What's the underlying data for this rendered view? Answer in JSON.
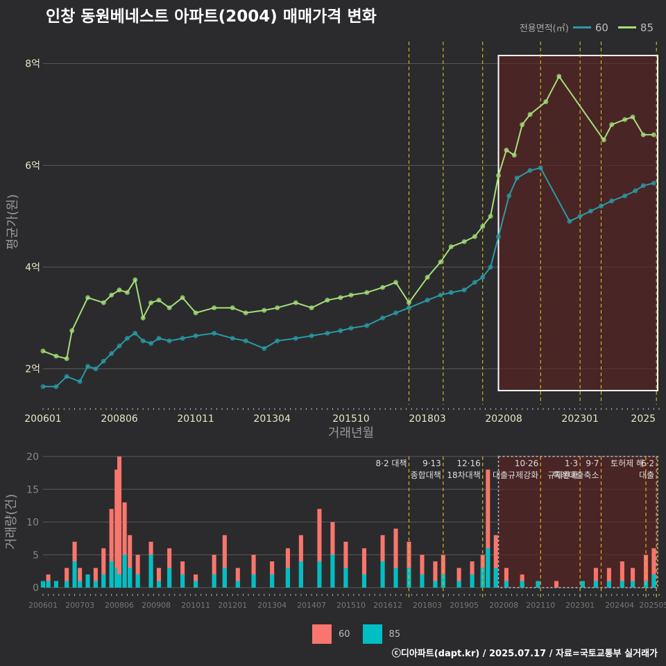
{
  "title": "인창 동원베네스트 아파트(2004) 매매가격 변화",
  "legend": {
    "title": "전용면적(㎡)",
    "items": [
      {
        "name": "60",
        "color": "#2a9ba6"
      },
      {
        "name": "85",
        "color": "#a6e07a"
      }
    ]
  },
  "footer": "ⓒ디아파트(dapt.kr) / 2025.07.17 / 자료=국토교통부 실거래가",
  "bottom_legend": [
    {
      "name": "60",
      "color": "#f8766d"
    },
    {
      "name": "85",
      "color": "#00bfc4"
    }
  ],
  "chart_data": [
    {
      "type": "line",
      "ylabel": "평균가(원)",
      "xlabel": "거래년월",
      "ylim": [
        1.3,
        8.5
      ],
      "y_ticks": [
        {
          "value": 2,
          "label": "2억"
        },
        {
          "value": 4,
          "label": "4억"
        },
        {
          "value": 6,
          "label": "6억"
        },
        {
          "value": 8,
          "label": "8억"
        }
      ],
      "x_range": [
        "2006-01",
        "2025-07"
      ],
      "x_ticks": [
        "200601",
        "200806",
        "201011",
        "201304",
        "201510",
        "201803",
        "202008",
        "202301",
        "2025"
      ],
      "policy_dates": [
        "2017-08",
        "2018-09",
        "2019-12",
        "2021-10",
        "2023-01",
        "2023-09",
        "2025-06"
      ],
      "highlight_range": [
        "2020-06",
        "2025-07"
      ],
      "series": [
        {
          "name": "60",
          "color": "#2a9ba6",
          "points": [
            [
              "2006-01",
              1.65
            ],
            [
              "2006-06",
              1.65
            ],
            [
              "2006-10",
              1.85
            ],
            [
              "2007-03",
              1.75
            ],
            [
              "2007-06",
              2.05
            ],
            [
              "2007-09",
              2.0
            ],
            [
              "2007-12",
              2.15
            ],
            [
              "2008-03",
              2.3
            ],
            [
              "2008-06",
              2.45
            ],
            [
              "2008-09",
              2.6
            ],
            [
              "2008-12",
              2.7
            ],
            [
              "2009-03",
              2.55
            ],
            [
              "2009-06",
              2.5
            ],
            [
              "2009-09",
              2.6
            ],
            [
              "2010-01",
              2.55
            ],
            [
              "2010-06",
              2.6
            ],
            [
              "2010-11",
              2.65
            ],
            [
              "2011-06",
              2.7
            ],
            [
              "2012-01",
              2.6
            ],
            [
              "2012-06",
              2.55
            ],
            [
              "2013-01",
              2.4
            ],
            [
              "2013-06",
              2.55
            ],
            [
              "2014-01",
              2.6
            ],
            [
              "2014-07",
              2.65
            ],
            [
              "2015-01",
              2.7
            ],
            [
              "2015-06",
              2.75
            ],
            [
              "2015-10",
              2.8
            ],
            [
              "2016-04",
              2.85
            ],
            [
              "2016-10",
              3.0
            ],
            [
              "2017-03",
              3.1
            ],
            [
              "2017-08",
              3.2
            ],
            [
              "2018-03",
              3.35
            ],
            [
              "2018-08",
              3.45
            ],
            [
              "2018-12",
              3.5
            ],
            [
              "2019-05",
              3.55
            ],
            [
              "2019-09",
              3.7
            ],
            [
              "2019-12",
              3.8
            ],
            [
              "2020-03",
              4.0
            ],
            [
              "2020-06",
              4.6
            ],
            [
              "2020-10",
              5.4
            ],
            [
              "2021-01",
              5.75
            ],
            [
              "2021-06",
              5.9
            ],
            [
              "2021-10",
              5.95
            ],
            [
              "2022-09",
              4.9
            ],
            [
              "2023-01",
              5.0
            ],
            [
              "2023-05",
              5.1
            ],
            [
              "2023-09",
              5.2
            ],
            [
              "2024-01",
              5.3
            ],
            [
              "2024-06",
              5.4
            ],
            [
              "2024-10",
              5.5
            ],
            [
              "2025-01",
              5.6
            ],
            [
              "2025-05",
              5.65
            ]
          ]
        },
        {
          "name": "85",
          "color": "#a6e07a",
          "points": [
            [
              "2006-01",
              2.35
            ],
            [
              "2006-06",
              2.25
            ],
            [
              "2006-10",
              2.2
            ],
            [
              "2006-12",
              2.75
            ],
            [
              "2007-06",
              3.4
            ],
            [
              "2007-12",
              3.3
            ],
            [
              "2008-03",
              3.45
            ],
            [
              "2008-06",
              3.55
            ],
            [
              "2008-09",
              3.5
            ],
            [
              "2008-12",
              3.75
            ],
            [
              "2009-03",
              3.0
            ],
            [
              "2009-06",
              3.3
            ],
            [
              "2009-09",
              3.35
            ],
            [
              "2010-01",
              3.2
            ],
            [
              "2010-06",
              3.4
            ],
            [
              "2010-11",
              3.1
            ],
            [
              "2011-06",
              3.2
            ],
            [
              "2012-01",
              3.2
            ],
            [
              "2012-06",
              3.1
            ],
            [
              "2013-01",
              3.15
            ],
            [
              "2013-06",
              3.2
            ],
            [
              "2014-01",
              3.3
            ],
            [
              "2014-07",
              3.2
            ],
            [
              "2015-01",
              3.35
            ],
            [
              "2015-06",
              3.4
            ],
            [
              "2015-10",
              3.45
            ],
            [
              "2016-04",
              3.5
            ],
            [
              "2016-10",
              3.6
            ],
            [
              "2017-03",
              3.7
            ],
            [
              "2017-08",
              3.3
            ],
            [
              "2018-03",
              3.8
            ],
            [
              "2018-08",
              4.1
            ],
            [
              "2018-12",
              4.4
            ],
            [
              "2019-05",
              4.5
            ],
            [
              "2019-09",
              4.6
            ],
            [
              "2019-12",
              4.8
            ],
            [
              "2020-03",
              5.0
            ],
            [
              "2020-06",
              5.8
            ],
            [
              "2020-09",
              6.3
            ],
            [
              "2020-12",
              6.2
            ],
            [
              "2021-03",
              6.8
            ],
            [
              "2021-06",
              7.0
            ],
            [
              "2021-12",
              7.25
            ],
            [
              "2022-05",
              7.75
            ],
            [
              "2023-10",
              6.5
            ],
            [
              "2024-01",
              6.8
            ],
            [
              "2024-06",
              6.9
            ],
            [
              "2024-09",
              6.95
            ],
            [
              "2025-01",
              6.6
            ],
            [
              "2025-05",
              6.6
            ]
          ]
        }
      ]
    },
    {
      "type": "bar",
      "ylabel": "거래량(건)",
      "ylim": [
        0,
        20
      ],
      "y_ticks": [
        0,
        5,
        10,
        15,
        20
      ],
      "x_ticks": [
        "200601",
        "200703",
        "200806",
        "200908",
        "201011",
        "201201",
        "201304",
        "201407",
        "201510",
        "201612",
        "201803",
        "201905",
        "202008",
        "202110",
        "202301",
        "202404",
        "202505"
      ],
      "policy_annotations": [
        {
          "date": "2017-08",
          "label": "8·2 대책"
        },
        {
          "date": "2018-09",
          "label": "9·13\n종합대책"
        },
        {
          "date": "2019-12",
          "label": "12·16\n18차대책"
        },
        {
          "date": "2021-10",
          "label": "10·26\n대출규제강화"
        },
        {
          "date": "2023-01",
          "label": "1·3\n규제완화"
        },
        {
          "date": "2023-09",
          "label": "9·7\n특례대출축소"
        },
        {
          "date": "2025-06",
          "label": "6·2\n대출"
        },
        {
          "date": "2025-02",
          "label": "토허제 해"
        }
      ],
      "series": [
        {
          "name": "60",
          "color": "#f8766d"
        },
        {
          "name": "85",
          "color": "#00bfc4"
        }
      ],
      "monthly": [
        {
          "m": "2006-01",
          "v60": 1,
          "v85": 1
        },
        {
          "m": "2006-03",
          "v60": 2,
          "v85": 1
        },
        {
          "m": "2006-06",
          "v60": 1,
          "v85": 1
        },
        {
          "m": "2006-10",
          "v60": 3,
          "v85": 1
        },
        {
          "m": "2007-01",
          "v60": 7,
          "v85": 4
        },
        {
          "m": "2007-03",
          "v60": 3,
          "v85": 1
        },
        {
          "m": "2007-06",
          "v60": 2,
          "v85": 2
        },
        {
          "m": "2007-09",
          "v60": 3,
          "v85": 1
        },
        {
          "m": "2007-12",
          "v60": 6,
          "v85": 2
        },
        {
          "m": "2008-03",
          "v60": 12,
          "v85": 4
        },
        {
          "m": "2008-05",
          "v60": 18,
          "v85": 3
        },
        {
          "m": "2008-06",
          "v60": 20,
          "v85": 2
        },
        {
          "m": "2008-08",
          "v60": 13,
          "v85": 5
        },
        {
          "m": "2008-10",
          "v60": 8,
          "v85": 3
        },
        {
          "m": "2009-01",
          "v60": 5,
          "v85": 2
        },
        {
          "m": "2009-06",
          "v60": 7,
          "v85": 5
        },
        {
          "m": "2009-09",
          "v60": 3,
          "v85": 1
        },
        {
          "m": "2010-01",
          "v60": 6,
          "v85": 3
        },
        {
          "m": "2010-06",
          "v60": 4,
          "v85": 2
        },
        {
          "m": "2010-11",
          "v60": 2,
          "v85": 1
        },
        {
          "m": "2011-06",
          "v60": 5,
          "v85": 2
        },
        {
          "m": "2011-10",
          "v60": 8,
          "v85": 3
        },
        {
          "m": "2012-03",
          "v60": 3,
          "v85": 1
        },
        {
          "m": "2012-09",
          "v60": 5,
          "v85": 2
        },
        {
          "m": "2013-04",
          "v60": 4,
          "v85": 2
        },
        {
          "m": "2013-10",
          "v60": 6,
          "v85": 3
        },
        {
          "m": "2014-03",
          "v60": 8,
          "v85": 4
        },
        {
          "m": "2014-10",
          "v60": 12,
          "v85": 4
        },
        {
          "m": "2015-03",
          "v60": 10,
          "v85": 5
        },
        {
          "m": "2015-08",
          "v60": 7,
          "v85": 3
        },
        {
          "m": "2016-03",
          "v60": 6,
          "v85": 2
        },
        {
          "m": "2016-10",
          "v60": 8,
          "v85": 4
        },
        {
          "m": "2017-03",
          "v60": 9,
          "v85": 3
        },
        {
          "m": "2017-08",
          "v60": 7,
          "v85": 3
        },
        {
          "m": "2018-01",
          "v60": 5,
          "v85": 2
        },
        {
          "m": "2018-06",
          "v60": 4,
          "v85": 1
        },
        {
          "m": "2018-09",
          "v60": 5,
          "v85": 2
        },
        {
          "m": "2019-03",
          "v60": 3,
          "v85": 1
        },
        {
          "m": "2019-08",
          "v60": 4,
          "v85": 2
        },
        {
          "m": "2019-12",
          "v60": 5,
          "v85": 3
        },
        {
          "m": "2020-02",
          "v60": 18,
          "v85": 6
        },
        {
          "m": "2020-05",
          "v60": 8,
          "v85": 3
        },
        {
          "m": "2020-09",
          "v60": 3,
          "v85": 1
        },
        {
          "m": "2021-03",
          "v60": 2,
          "v85": 1
        },
        {
          "m": "2021-09",
          "v60": 1,
          "v85": 1
        },
        {
          "m": "2022-04",
          "v60": 1,
          "v85": 0
        },
        {
          "m": "2023-02",
          "v60": 1,
          "v85": 1
        },
        {
          "m": "2023-07",
          "v60": 3,
          "v85": 1
        },
        {
          "m": "2023-12",
          "v60": 3,
          "v85": 1
        },
        {
          "m": "2024-05",
          "v60": 4,
          "v85": 1
        },
        {
          "m": "2024-09",
          "v60": 3,
          "v85": 1
        },
        {
          "m": "2025-02",
          "v60": 5,
          "v85": 1
        },
        {
          "m": "2025-05",
          "v60": 6,
          "v85": 2
        }
      ]
    }
  ]
}
